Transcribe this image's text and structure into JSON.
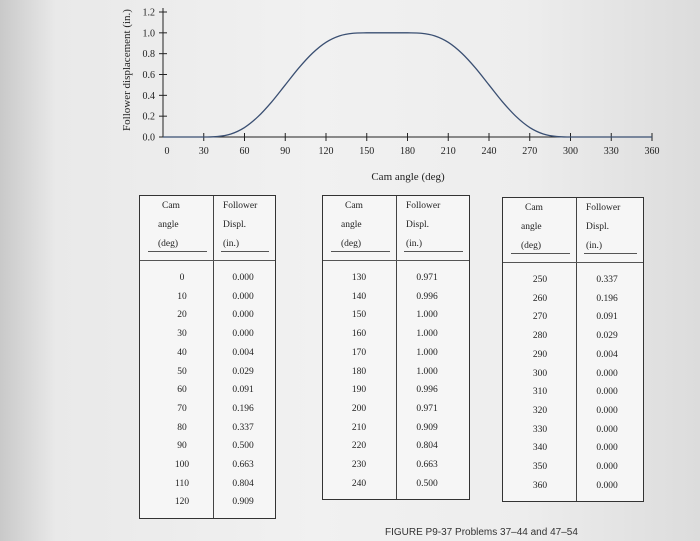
{
  "chart_data": {
    "type": "line",
    "ylabel": "Follower displacement (in.)",
    "xlabel": "Cam angle (deg)",
    "xlim": [
      0,
      360
    ],
    "ylim": [
      0,
      1.2
    ],
    "x_ticks": [
      "0",
      "30",
      "60",
      "90",
      "120",
      "150",
      "180",
      "210",
      "240",
      "270",
      "300",
      "330",
      "360"
    ],
    "y_ticks": [
      "0.0",
      "0.2",
      "0.4",
      "0.6",
      "0.8",
      "1.0",
      "1.2"
    ],
    "grid": false,
    "series": [
      {
        "x": [
          0,
          10,
          20,
          30,
          40,
          50,
          60,
          70,
          80,
          90,
          100,
          110,
          120,
          130,
          140,
          150,
          160,
          170,
          180,
          190,
          200,
          210,
          220,
          230,
          240,
          250,
          260,
          270,
          280,
          290,
          300,
          310,
          320,
          330,
          340,
          350,
          360
        ],
        "y": [
          0.0,
          0.0,
          0.0,
          0.0,
          0.004,
          0.029,
          0.091,
          0.196,
          0.337,
          0.5,
          0.663,
          0.804,
          0.909,
          0.971,
          0.996,
          1.0,
          1.0,
          1.0,
          1.0,
          0.996,
          0.971,
          0.909,
          0.804,
          0.663,
          0.5,
          0.337,
          0.196,
          0.091,
          0.029,
          0.004,
          0.0,
          0.0,
          0.0,
          0.0,
          0.0,
          0.0,
          0.0
        ]
      }
    ]
  },
  "tables": [
    {
      "headers": {
        "col1": [
          "Cam",
          "angle",
          "(deg)"
        ],
        "col2": [
          "Follower",
          "Displ.",
          "(in.)"
        ]
      },
      "rows": [
        [
          "0",
          "0.000"
        ],
        [
          "10",
          "0.000"
        ],
        [
          "20",
          "0.000"
        ],
        [
          "30",
          "0.000"
        ],
        [
          "40",
          "0.004"
        ],
        [
          "50",
          "0.029"
        ],
        [
          "60",
          "0.091"
        ],
        [
          "70",
          "0.196"
        ],
        [
          "80",
          "0.337"
        ],
        [
          "90",
          "0.500"
        ],
        [
          "100",
          "0.663"
        ],
        [
          "110",
          "0.804"
        ],
        [
          "120",
          "0.909"
        ]
      ]
    },
    {
      "headers": {
        "col1": [
          "Cam",
          "angle",
          "(deg)"
        ],
        "col2": [
          "Follower",
          "Displ.",
          "(in.)"
        ]
      },
      "rows": [
        [
          "130",
          "0.971"
        ],
        [
          "140",
          "0.996"
        ],
        [
          "150",
          "1.000"
        ],
        [
          "160",
          "1.000"
        ],
        [
          "170",
          "1.000"
        ],
        [
          "180",
          "1.000"
        ],
        [
          "190",
          "0.996"
        ],
        [
          "200",
          "0.971"
        ],
        [
          "210",
          "0.909"
        ],
        [
          "220",
          "0.804"
        ],
        [
          "230",
          "0.663"
        ],
        [
          "240",
          "0.500"
        ]
      ]
    },
    {
      "headers": {
        "col1": [
          "Cam",
          "angle",
          "(deg)"
        ],
        "col2": [
          "Follower",
          "Displ.",
          "(in.)"
        ]
      },
      "rows": [
        [
          "250",
          "0.337"
        ],
        [
          "260",
          "0.196"
        ],
        [
          "270",
          "0.091"
        ],
        [
          "280",
          "0.029"
        ],
        [
          "290",
          "0.004"
        ],
        [
          "300",
          "0.000"
        ],
        [
          "310",
          "0.000"
        ],
        [
          "320",
          "0.000"
        ],
        [
          "330",
          "0.000"
        ],
        [
          "340",
          "0.000"
        ],
        [
          "350",
          "0.000"
        ],
        [
          "360",
          "0.000"
        ]
      ]
    }
  ],
  "caption": "FIGURE P9-37  Problems 37–44 and 47–54",
  "colors": {
    "curve": "#3a4f72",
    "axis": "#222222"
  }
}
